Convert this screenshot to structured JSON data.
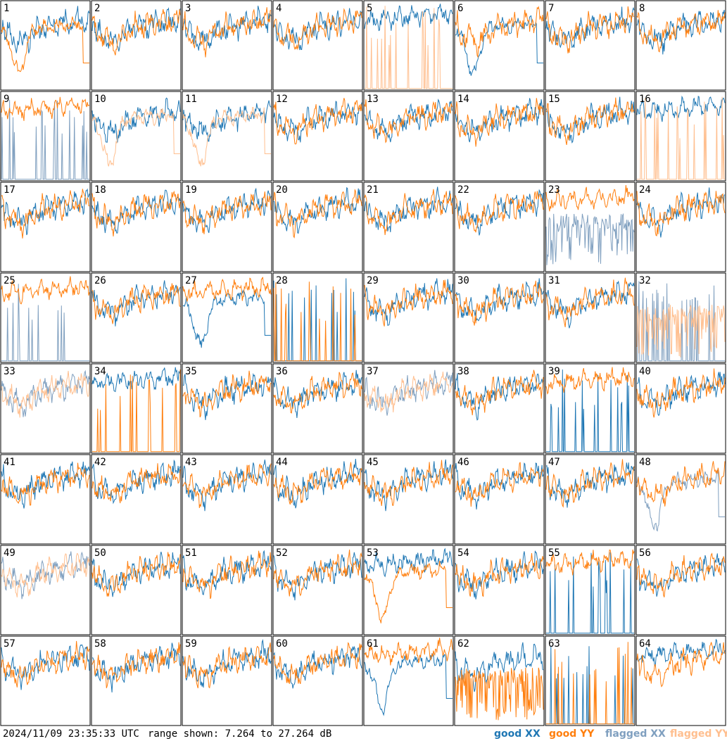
{
  "footer": {
    "timestamp": "2024/11/09 23:35:33 UTC",
    "range": "range shown: 7.264 to 27.264 dB"
  },
  "legend": {
    "good_xx": "good XX",
    "good_yy": "good YY",
    "flagged_xx": "flagged XX",
    "flagged_yy": "flagged YY"
  },
  "colors": {
    "good_xx": "#1f77b4",
    "good_yy": "#ff7f0e",
    "flagged_xx": "#7f9fbf",
    "flagged_yy": "#ffbf8f"
  },
  "chart_data": {
    "type": "line",
    "layout": "8x8 grid of small multiples, one spectrum panel per antenna",
    "y_range_db": [
      7.264,
      27.264
    ],
    "x_axis": "channel (unlabeled)",
    "series_keys": [
      "XX",
      "YY"
    ],
    "panels": [
      {
        "id": 1,
        "xx": "good",
        "yy": "good",
        "xx_shape": "normal",
        "yy_shape": "dip"
      },
      {
        "id": 2,
        "xx": "good",
        "yy": "good",
        "xx_shape": "normal",
        "yy_shape": "normal"
      },
      {
        "id": 3,
        "xx": "good",
        "yy": "good",
        "xx_shape": "normal",
        "yy_shape": "normal"
      },
      {
        "id": 4,
        "xx": "good",
        "yy": "good",
        "xx_shape": "normal",
        "yy_shape": "normal"
      },
      {
        "id": 5,
        "xx": "good",
        "yy": "flagged",
        "xx_shape": "high",
        "yy_shape": "spikes"
      },
      {
        "id": 6,
        "xx": "good",
        "yy": "good",
        "xx_shape": "dip",
        "yy_shape": "normal"
      },
      {
        "id": 7,
        "xx": "good",
        "yy": "good",
        "xx_shape": "normal",
        "yy_shape": "normal"
      },
      {
        "id": 8,
        "xx": "good",
        "yy": "good",
        "xx_shape": "normal",
        "yy_shape": "normal"
      },
      {
        "id": 9,
        "xx": "flagged",
        "yy": "good",
        "xx_shape": "spikes",
        "yy_shape": "high"
      },
      {
        "id": 10,
        "xx": "good",
        "yy": "flagged",
        "xx_shape": "normal",
        "yy_shape": "dip"
      },
      {
        "id": 11,
        "xx": "good",
        "yy": "flagged",
        "xx_shape": "normal",
        "yy_shape": "dip"
      },
      {
        "id": 12,
        "xx": "good",
        "yy": "good",
        "xx_shape": "normal",
        "yy_shape": "normal"
      },
      {
        "id": 13,
        "xx": "good",
        "yy": "good",
        "xx_shape": "normal",
        "yy_shape": "normal"
      },
      {
        "id": 14,
        "xx": "good",
        "yy": "good",
        "xx_shape": "normal",
        "yy_shape": "normal"
      },
      {
        "id": 15,
        "xx": "good",
        "yy": "good",
        "xx_shape": "normal",
        "yy_shape": "normal"
      },
      {
        "id": 16,
        "xx": "good",
        "yy": "flagged",
        "xx_shape": "high",
        "yy_shape": "spikes"
      },
      {
        "id": 17,
        "xx": "good",
        "yy": "good",
        "xx_shape": "normal",
        "yy_shape": "normal"
      },
      {
        "id": 18,
        "xx": "good",
        "yy": "good",
        "xx_shape": "normal",
        "yy_shape": "normal"
      },
      {
        "id": 19,
        "xx": "good",
        "yy": "good",
        "xx_shape": "normal",
        "yy_shape": "normal"
      },
      {
        "id": 20,
        "xx": "good",
        "yy": "good",
        "xx_shape": "normal",
        "yy_shape": "normal"
      },
      {
        "id": 21,
        "xx": "good",
        "yy": "good",
        "xx_shape": "normal",
        "yy_shape": "normal"
      },
      {
        "id": 22,
        "xx": "good",
        "yy": "good",
        "xx_shape": "normal",
        "yy_shape": "normal"
      },
      {
        "id": 23,
        "xx": "flagged",
        "yy": "good",
        "xx_shape": "noisy",
        "yy_shape": "high"
      },
      {
        "id": 24,
        "xx": "good",
        "yy": "good",
        "xx_shape": "normal",
        "yy_shape": "normal"
      },
      {
        "id": 25,
        "xx": "flagged",
        "yy": "good",
        "xx_shape": "spikes",
        "yy_shape": "high"
      },
      {
        "id": 26,
        "xx": "good",
        "yy": "good",
        "xx_shape": "normal",
        "yy_shape": "normal"
      },
      {
        "id": 27,
        "xx": "good",
        "yy": "good",
        "xx_shape": "dip",
        "yy_shape": "high"
      },
      {
        "id": 28,
        "xx": "good",
        "yy": "good",
        "xx_shape": "spikes",
        "yy_shape": "spikes"
      },
      {
        "id": 29,
        "xx": "good",
        "yy": "good",
        "xx_shape": "normal",
        "yy_shape": "normal"
      },
      {
        "id": 30,
        "xx": "good",
        "yy": "good",
        "xx_shape": "normal",
        "yy_shape": "normal"
      },
      {
        "id": 31,
        "xx": "good",
        "yy": "good",
        "xx_shape": "normal",
        "yy_shape": "normal"
      },
      {
        "id": 32,
        "xx": "flagged",
        "yy": "flagged",
        "xx_shape": "spikes",
        "yy_shape": "noisy"
      },
      {
        "id": 33,
        "xx": "flagged",
        "yy": "flagged",
        "xx_shape": "normal",
        "yy_shape": "normal"
      },
      {
        "id": 34,
        "xx": "good",
        "yy": "good",
        "xx_shape": "high",
        "yy_shape": "spikes"
      },
      {
        "id": 35,
        "xx": "good",
        "yy": "good",
        "xx_shape": "normal",
        "yy_shape": "normal"
      },
      {
        "id": 36,
        "xx": "good",
        "yy": "good",
        "xx_shape": "normal",
        "yy_shape": "normal"
      },
      {
        "id": 37,
        "xx": "flagged",
        "yy": "flagged",
        "xx_shape": "normal",
        "yy_shape": "normal"
      },
      {
        "id": 38,
        "xx": "good",
        "yy": "good",
        "xx_shape": "normal",
        "yy_shape": "normal"
      },
      {
        "id": 39,
        "xx": "good",
        "yy": "good",
        "xx_shape": "spikes",
        "yy_shape": "high"
      },
      {
        "id": 40,
        "xx": "good",
        "yy": "good",
        "xx_shape": "normal",
        "yy_shape": "normal"
      },
      {
        "id": 41,
        "xx": "good",
        "yy": "good",
        "xx_shape": "normal",
        "yy_shape": "normal"
      },
      {
        "id": 42,
        "xx": "good",
        "yy": "good",
        "xx_shape": "normal",
        "yy_shape": "normal"
      },
      {
        "id": 43,
        "xx": "good",
        "yy": "good",
        "xx_shape": "normal",
        "yy_shape": "normal"
      },
      {
        "id": 44,
        "xx": "good",
        "yy": "good",
        "xx_shape": "normal",
        "yy_shape": "normal"
      },
      {
        "id": 45,
        "xx": "good",
        "yy": "good",
        "xx_shape": "normal",
        "yy_shape": "normal"
      },
      {
        "id": 46,
        "xx": "good",
        "yy": "good",
        "xx_shape": "normal",
        "yy_shape": "normal"
      },
      {
        "id": 47,
        "xx": "good",
        "yy": "good",
        "xx_shape": "normal",
        "yy_shape": "normal"
      },
      {
        "id": 48,
        "xx": "flagged",
        "yy": "good",
        "xx_shape": "dip",
        "yy_shape": "normal"
      },
      {
        "id": 49,
        "xx": "flagged",
        "yy": "flagged",
        "xx_shape": "normal",
        "yy_shape": "normal"
      },
      {
        "id": 50,
        "xx": "good",
        "yy": "good",
        "xx_shape": "normal",
        "yy_shape": "normal"
      },
      {
        "id": 51,
        "xx": "good",
        "yy": "good",
        "xx_shape": "normal",
        "yy_shape": "normal"
      },
      {
        "id": 52,
        "xx": "good",
        "yy": "good",
        "xx_shape": "normal",
        "yy_shape": "normal"
      },
      {
        "id": 53,
        "xx": "good",
        "yy": "good",
        "xx_shape": "high",
        "yy_shape": "dip"
      },
      {
        "id": 54,
        "xx": "good",
        "yy": "good",
        "xx_shape": "normal",
        "yy_shape": "normal"
      },
      {
        "id": 55,
        "xx": "good",
        "yy": "good",
        "xx_shape": "spikes",
        "yy_shape": "high"
      },
      {
        "id": 56,
        "xx": "good",
        "yy": "good",
        "xx_shape": "normal",
        "yy_shape": "normal"
      },
      {
        "id": 57,
        "xx": "good",
        "yy": "good",
        "xx_shape": "normal",
        "yy_shape": "normal"
      },
      {
        "id": 58,
        "xx": "good",
        "yy": "good",
        "xx_shape": "normal",
        "yy_shape": "normal"
      },
      {
        "id": 59,
        "xx": "good",
        "yy": "good",
        "xx_shape": "normal",
        "yy_shape": "normal"
      },
      {
        "id": 60,
        "xx": "good",
        "yy": "good",
        "xx_shape": "normal",
        "yy_shape": "normal"
      },
      {
        "id": 61,
        "xx": "good",
        "yy": "good",
        "xx_shape": "dip",
        "yy_shape": "high"
      },
      {
        "id": 62,
        "xx": "good",
        "yy": "good",
        "xx_shape": "normal",
        "yy_shape": "noisy"
      },
      {
        "id": 63,
        "xx": "good",
        "yy": "good",
        "xx_shape": "spikes",
        "yy_shape": "spikes"
      },
      {
        "id": 64,
        "xx": "good",
        "yy": "good",
        "xx_shape": "high",
        "yy_shape": "normal"
      }
    ]
  }
}
